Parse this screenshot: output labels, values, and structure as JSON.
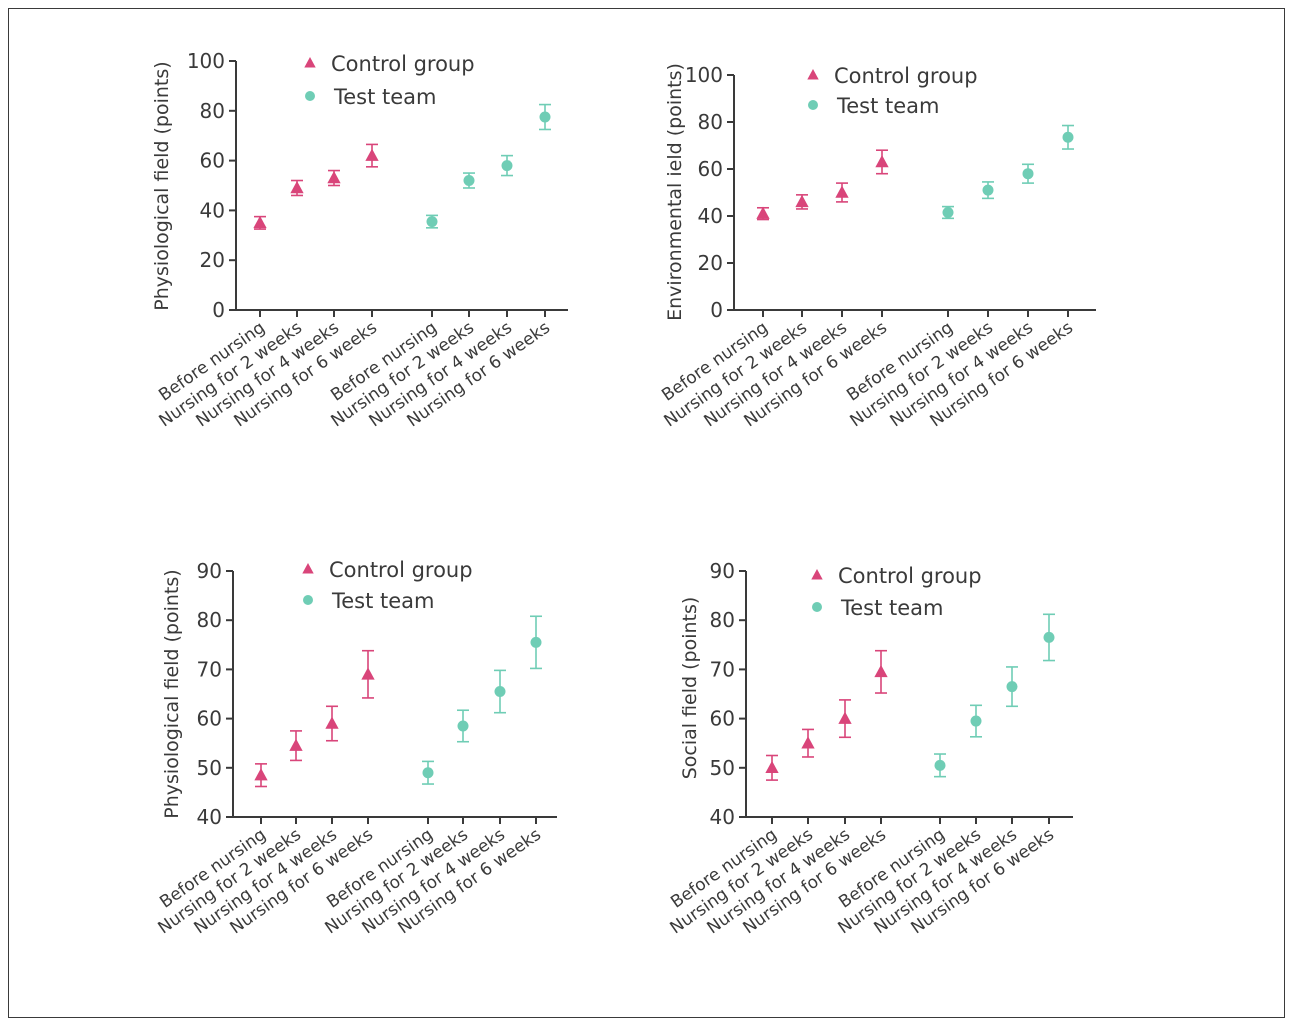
{
  "colors": {
    "control": "#d9457a",
    "test": "#6fcdb5",
    "axis": "#3a3a3a"
  },
  "legend": {
    "control": "Control group",
    "test": "Test team"
  },
  "chart_data": [
    {
      "type": "scatter",
      "ylabel": "Physiological field (points)",
      "ylim": [
        0,
        100
      ],
      "yticks": [
        0,
        20,
        40,
        60,
        80,
        100
      ],
      "categories": [
        "Before nursing",
        "Nursing for 2 weeks",
        "Nursing for 4 weeks",
        "Nursing for 6 weeks",
        "Before nursing",
        "Nursing for 2 weeks",
        "Nursing for 4 weeks",
        "Nursing for 6 weeks"
      ],
      "series": [
        {
          "name": "Control group",
          "values": [
            35,
            49,
            53,
            62
          ],
          "err": [
            2.5,
            3,
            3,
            4.5
          ]
        },
        {
          "name": "Test team",
          "values": [
            35.5,
            52,
            58,
            77.5
          ],
          "err": [
            2.5,
            3,
            4,
            5
          ]
        }
      ]
    },
    {
      "type": "scatter",
      "ylabel": "Environmental ield (points)",
      "ylim": [
        0,
        100
      ],
      "yticks": [
        0,
        20,
        40,
        60,
        80,
        100
      ],
      "categories": [
        "Before nursing",
        "Nursing for 2 weeks",
        "Nursing for 4 weeks",
        "Nursing for 6 weeks",
        "Before nursing",
        "Nursing for 2 weeks",
        "Nursing for 4 weeks",
        "Nursing for 6 weeks"
      ],
      "series": [
        {
          "name": "Control group",
          "values": [
            41,
            46,
            50,
            63
          ],
          "err": [
            2.5,
            3,
            4,
            5
          ]
        },
        {
          "name": "Test team",
          "values": [
            41.5,
            51,
            58,
            73.5
          ],
          "err": [
            2.5,
            3.5,
            4,
            5
          ]
        }
      ]
    },
    {
      "type": "scatter",
      "ylabel": "Physiological field (points)",
      "ylim": [
        40,
        90
      ],
      "yticks": [
        40,
        50,
        60,
        70,
        80,
        90
      ],
      "categories": [
        "Before nursing",
        "Nursing for 2 weeks",
        "Nursing for 4 weeks",
        "Nursing for 6 weeks",
        "Before nursing",
        "Nursing for 2 weeks",
        "Nursing for 4 weeks",
        "Nursing for 6 weeks"
      ],
      "series": [
        {
          "name": "Control group",
          "values": [
            48.5,
            54.5,
            59,
            69
          ],
          "err": [
            2.3,
            3,
            3.5,
            4.8
          ]
        },
        {
          "name": "Test team",
          "values": [
            49,
            58.5,
            65.5,
            75.5
          ],
          "err": [
            2.3,
            3.2,
            4.3,
            5.3
          ]
        }
      ]
    },
    {
      "type": "scatter",
      "ylabel": "Social field (points)",
      "ylim": [
        40,
        90
      ],
      "yticks": [
        40,
        50,
        60,
        70,
        80,
        90
      ],
      "categories": [
        "Before nursing",
        "Nursing for 2 weeks",
        "Nursing for 4 weeks",
        "Nursing for 6 weeks",
        "Before nursing",
        "Nursing for 2 weeks",
        "Nursing for 4 weeks",
        "Nursing for 6 weeks"
      ],
      "series": [
        {
          "name": "Control group",
          "values": [
            50,
            55,
            60,
            69.5
          ],
          "err": [
            2.5,
            2.8,
            3.8,
            4.3
          ]
        },
        {
          "name": "Test team",
          "values": [
            50.5,
            59.5,
            66.5,
            76.5
          ],
          "err": [
            2.3,
            3.2,
            4,
            4.7
          ]
        }
      ]
    }
  ]
}
